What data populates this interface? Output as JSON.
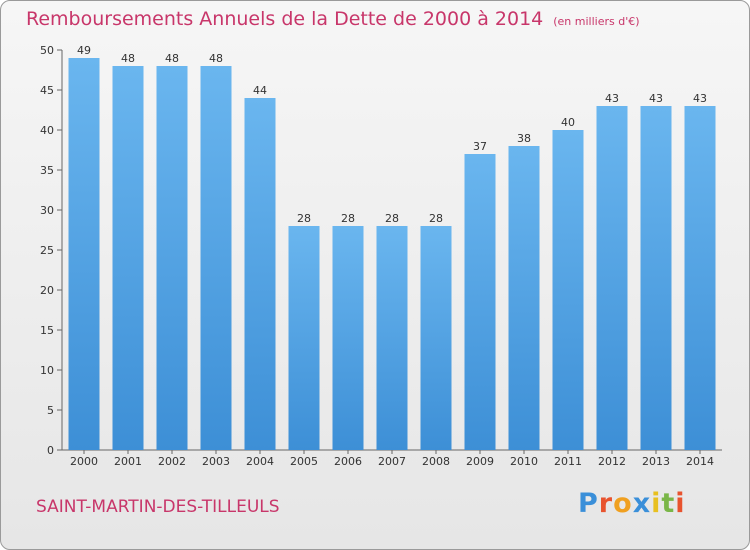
{
  "chart_data": {
    "type": "bar",
    "title": "Remboursements Annuels de la Dette de 2000 à 2014",
    "unit_label": "(en milliers d'€)",
    "categories": [
      "2000",
      "2001",
      "2002",
      "2003",
      "2004",
      "2005",
      "2006",
      "2007",
      "2008",
      "2009",
      "2010",
      "2011",
      "2012",
      "2013",
      "2014"
    ],
    "values": [
      49,
      48,
      48,
      48,
      44,
      28,
      28,
      28,
      28,
      37,
      38,
      40,
      43,
      43,
      43
    ],
    "ylim": [
      0,
      50
    ],
    "yticks": [
      0,
      5,
      10,
      15,
      20,
      25,
      30,
      35,
      40,
      45,
      50
    ],
    "grid": false,
    "legend": "none",
    "bar_color": "#3d8fd6",
    "bar_color_light": "#6ab6ef"
  },
  "town_name": "SAINT-MARTIN-DES-TILLEULS",
  "logo": {
    "letters": [
      "P",
      "r",
      "o",
      "x",
      "i",
      "t",
      "i"
    ],
    "colors": [
      "#3a8fd9",
      "#e8532e",
      "#f0a020",
      "#3a8fd9",
      "#e8c020",
      "#7ab648",
      "#e8532e"
    ]
  }
}
